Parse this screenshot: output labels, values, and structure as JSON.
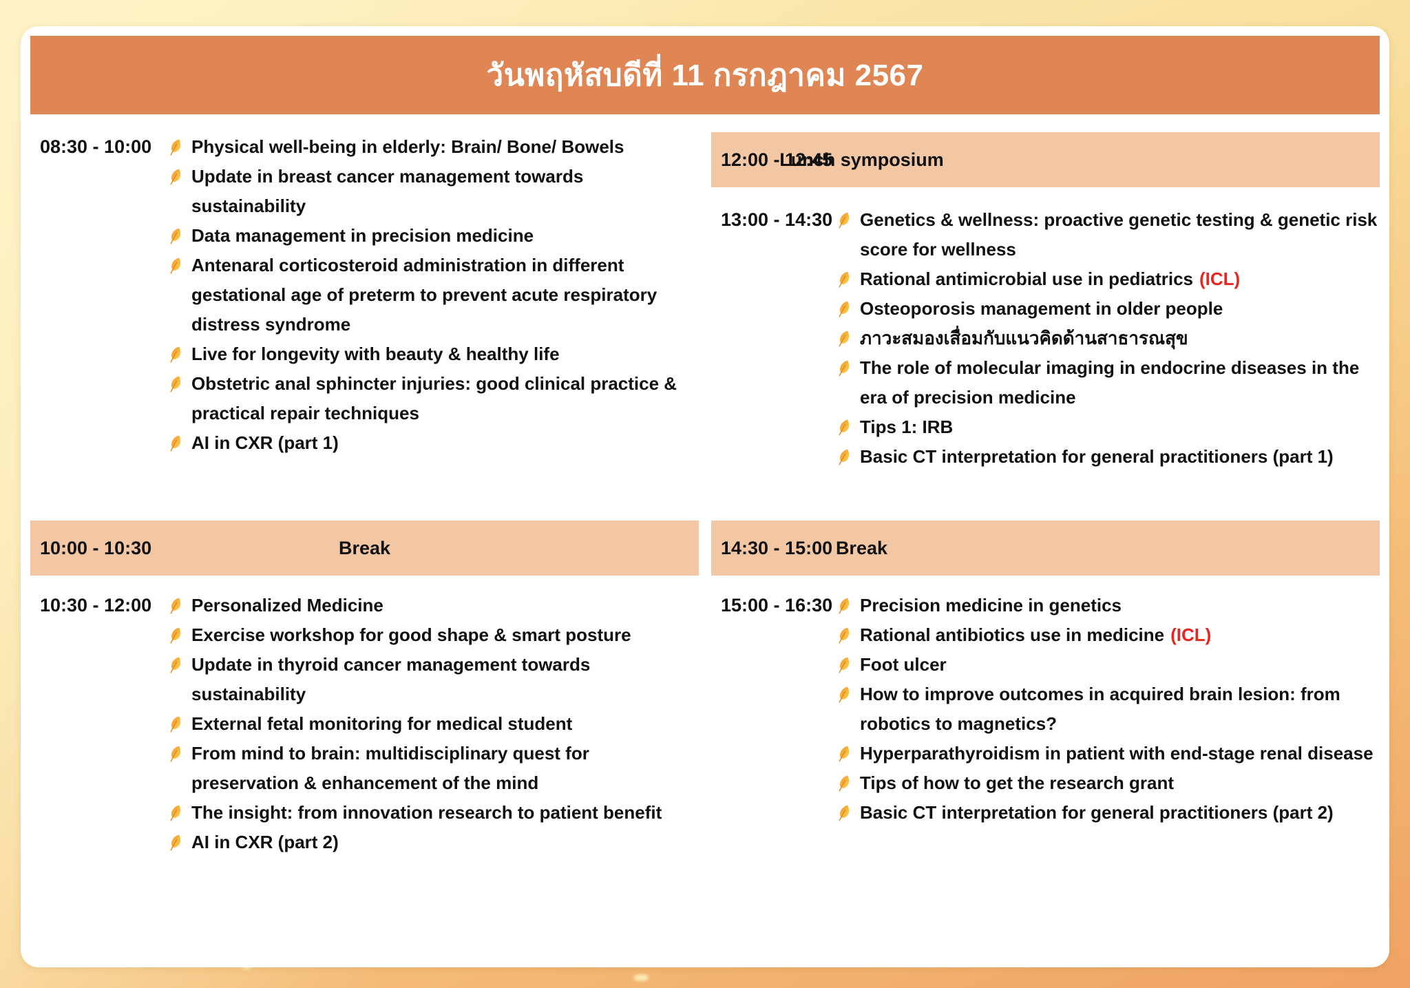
{
  "header": {
    "title": "วันพฤหัสบดีที่ 11 กรกฎาคม 2567"
  },
  "colors": {
    "header_orange": "#DF8654",
    "bar_peach": "#F3C7A3",
    "icl_red": "#E8251F",
    "leaf_orange": "#F0932B",
    "leaf_yellow": "#FFD34E",
    "text_black": "#111111",
    "background_yellow": "#FCEFBA",
    "background_orange": "#EFA263"
  },
  "icons": {
    "bullet": "leaf-icon"
  },
  "columns": [
    {
      "side": "left",
      "blocks": [
        {
          "type": "session",
          "time": "08:30 - 10:00",
          "items": [
            {
              "text": "Physical well-being in elderly: Brain/ Bone/ Bowels"
            },
            {
              "text": "Update in breast cancer management towards sustainability"
            },
            {
              "text": "Data management in precision medicine"
            },
            {
              "text": "Antenaral corticosteroid administration in different gestational age of preterm to prevent acute respiratory distress syndrome"
            },
            {
              "text": "Live for longevity with beauty & healthy life"
            },
            {
              "text": "Obstetric anal sphincter injuries: good clinical practice & practical repair techniques"
            },
            {
              "text": "AI in CXR (part 1)"
            }
          ]
        },
        {
          "type": "bar",
          "time": "10:00 - 10:30",
          "label": "Break"
        },
        {
          "type": "session",
          "time": "10:30 - 12:00",
          "items": [
            {
              "text": "Personalized Medicine"
            },
            {
              "text": "Exercise workshop for good shape & smart posture"
            },
            {
              "text": "Update in thyroid cancer management towards sustainability"
            },
            {
              "text": "External fetal monitoring for medical student"
            },
            {
              "text": "From mind to brain: multidisciplinary quest for preservation & enhancement of the mind"
            },
            {
              "text": "The insight: from innovation research to patient benefit"
            },
            {
              "text": "AI in CXR (part 2)"
            }
          ]
        }
      ]
    },
    {
      "side": "right",
      "blocks": [
        {
          "type": "bar",
          "time": "12:00 - 12:45",
          "label": "Lunch symposium"
        },
        {
          "type": "session",
          "time": "13:00 - 14:30",
          "items": [
            {
              "text": "Genetics & wellness: proactive genetic testing & genetic risk score for wellness"
            },
            {
              "text": "Rational antimicrobial use in pediatrics",
              "suffix": "(ICL)"
            },
            {
              "text": "Osteoporosis management in older people"
            },
            {
              "text": "ภาวะสมองเสื่อมกับแนวคิดด้านสาธารณสุข"
            },
            {
              "text": "The role of molecular imaging in endocrine diseases in the era of precision medicine"
            },
            {
              "text": "Tips 1: IRB"
            },
            {
              "text": "Basic CT interpretation for general practitioners (part 1)"
            }
          ]
        },
        {
          "type": "bar",
          "time": "14:30 - 15:00",
          "label": "Break"
        },
        {
          "type": "session",
          "time": "15:00 - 16:30",
          "items": [
            {
              "text": "Precision medicine in genetics"
            },
            {
              "text": "Rational antibiotics use in medicine",
              "suffix": "(ICL)"
            },
            {
              "text": "Foot ulcer"
            },
            {
              "text": "How to improve outcomes in acquired brain lesion: from robotics to magnetics?"
            },
            {
              "text": "Hyperparathyroidism in patient with end-stage renal disease"
            },
            {
              "text": "Tips of how to get the research grant"
            },
            {
              "text": "Basic CT interpretation for general practitioners (part 2)"
            }
          ]
        }
      ]
    }
  ]
}
